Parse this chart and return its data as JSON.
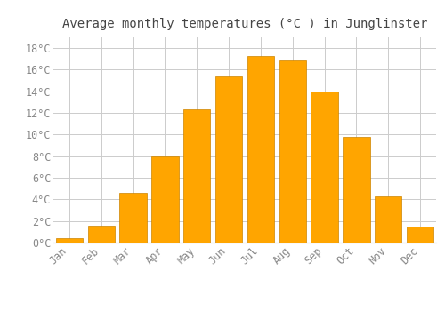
{
  "title": "Average monthly temperatures (°C ) in Junglinster",
  "months": [
    "Jan",
    "Feb",
    "Mar",
    "Apr",
    "May",
    "Jun",
    "Jul",
    "Aug",
    "Sep",
    "Oct",
    "Nov",
    "Dec"
  ],
  "values": [
    0.4,
    1.6,
    4.6,
    8.0,
    12.3,
    15.4,
    17.3,
    16.9,
    14.0,
    9.8,
    4.3,
    1.5
  ],
  "bar_color": "#FFA500",
  "bar_edge_color": "#CC8400",
  "background_color": "#FFFFFF",
  "grid_color": "#CCCCCC",
  "ylim": [
    0,
    19
  ],
  "yticks": [
    0,
    2,
    4,
    6,
    8,
    10,
    12,
    14,
    16,
    18
  ],
  "ytick_labels": [
    "0°C",
    "2°C",
    "4°C",
    "6°C",
    "8°C",
    "10°C",
    "12°C",
    "14°C",
    "16°C",
    "18°C"
  ],
  "title_fontsize": 10,
  "tick_fontsize": 8.5,
  "tick_font_color": "#888888",
  "bar_width": 0.85
}
